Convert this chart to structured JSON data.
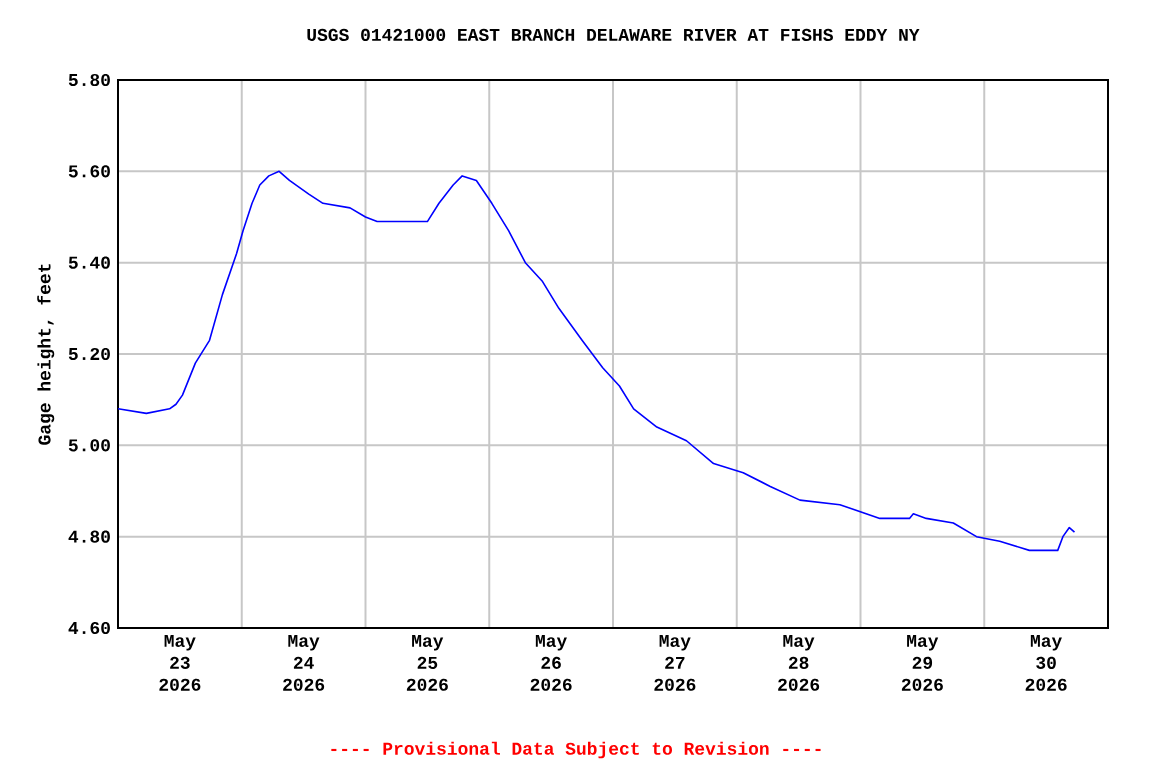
{
  "chart_data": {
    "type": "line",
    "title": "USGS 01421000 EAST BRANCH DELAWARE RIVER AT FISHS EDDY NY",
    "ylabel": "Gage height, feet",
    "annotations": [
      "---- Provisional Data Subject to Revision ----"
    ],
    "x": [
      "2026-05-23T00:00",
      "2026-05-23T05:30",
      "2026-05-23T10:00",
      "2026-05-23T11:15",
      "2026-05-23T12:30",
      "2026-05-23T15:00",
      "2026-05-23T17:45",
      "2026-05-23T20:15",
      "2026-05-23T23:00",
      "2026-05-24T00:15",
      "2026-05-24T02:00",
      "2026-05-24T03:30",
      "2026-05-24T05:15",
      "2026-05-24T07:15",
      "2026-05-24T09:15",
      "2026-05-24T13:00",
      "2026-05-24T15:45",
      "2026-05-24T21:00",
      "2026-05-25T00:00",
      "2026-05-25T02:15",
      "2026-05-25T03:15",
      "2026-05-25T12:00",
      "2026-05-25T14:15",
      "2026-05-25T17:00",
      "2026-05-25T18:45",
      "2026-05-25T21:30",
      "2026-05-26T00:30",
      "2026-05-26T03:45",
      "2026-05-26T07:00",
      "2026-05-26T10:15",
      "2026-05-26T13:30",
      "2026-05-26T18:00",
      "2026-05-26T22:00",
      "2026-05-27T01:15",
      "2026-05-27T04:00",
      "2026-05-27T08:30",
      "2026-05-27T14:15",
      "2026-05-27T19:30",
      "2026-05-28T01:15",
      "2026-05-28T06:30",
      "2026-05-28T12:15",
      "2026-05-28T20:00",
      "2026-05-29T03:45",
      "2026-05-29T09:30",
      "2026-05-29T10:15",
      "2026-05-29T12:45",
      "2026-05-29T18:00",
      "2026-05-29T22:30",
      "2026-05-30T03:00",
      "2026-05-30T08:45",
      "2026-05-30T14:15",
      "2026-05-30T15:15",
      "2026-05-30T16:30",
      "2026-05-30T17:30"
    ],
    "series": [
      {
        "color": "#0000ff",
        "values": [
          5.08,
          5.07,
          5.08,
          5.09,
          5.11,
          5.18,
          5.23,
          5.33,
          5.42,
          5.47,
          5.53,
          5.57,
          5.59,
          5.6,
          5.58,
          5.55,
          5.53,
          5.52,
          5.5,
          5.49,
          5.49,
          5.49,
          5.53,
          5.57,
          5.59,
          5.58,
          5.53,
          5.47,
          5.4,
          5.36,
          5.3,
          5.23,
          5.17,
          5.13,
          5.08,
          5.04,
          5.01,
          4.96,
          4.94,
          4.91,
          4.88,
          4.87,
          4.84,
          4.84,
          4.85,
          4.84,
          4.83,
          4.8,
          4.79,
          4.77,
          4.77,
          4.8,
          4.82,
          4.81
        ]
      }
    ],
    "xlim": [
      "2026-05-23T00:00",
      "2026-05-31T00:00"
    ],
    "xticks": [
      {
        "value": "2026-05-23T12:00",
        "label": "May 23 2026"
      },
      {
        "value": "2026-05-24T12:00",
        "label": "May 24 2026"
      },
      {
        "value": "2026-05-25T12:00",
        "label": "May 25 2026"
      },
      {
        "value": "2026-05-26T12:00",
        "label": "May 26 2026"
      },
      {
        "value": "2026-05-27T12:00",
        "label": "May 27 2026"
      },
      {
        "value": "2026-05-28T12:00",
        "label": "May 28 2026"
      },
      {
        "value": "2026-05-29T12:00",
        "label": "May 29 2026"
      },
      {
        "value": "2026-05-30T12:00",
        "label": "May 30 2026"
      },
      {
        "value": "2026-05-24T00:00",
        "label": null
      },
      {
        "value": "2026-05-25T00:00",
        "label": null
      },
      {
        "value": "2026-05-26T00:00",
        "label": null
      },
      {
        "value": "2026-05-27T00:00",
        "label": null
      },
      {
        "value": "2026-05-28T00:00",
        "label": null
      },
      {
        "value": "2026-05-29T00:00",
        "label": null
      },
      {
        "value": "2026-05-30T00:00",
        "label": null
      }
    ],
    "ylim": [
      4.6,
      5.8
    ],
    "yticks": [
      {
        "value": 4.6,
        "label": "4.60"
      },
      {
        "value": 4.8,
        "label": "4.80"
      },
      {
        "value": 5.0,
        "label": "5.00"
      },
      {
        "value": 5.2,
        "label": "5.20"
      },
      {
        "value": 5.4,
        "label": "5.40"
      },
      {
        "value": 5.6,
        "label": "5.60"
      },
      {
        "value": 5.8,
        "label": "5.80"
      }
    ],
    "grid": true,
    "marker": "none",
    "line_style": "solid"
  }
}
